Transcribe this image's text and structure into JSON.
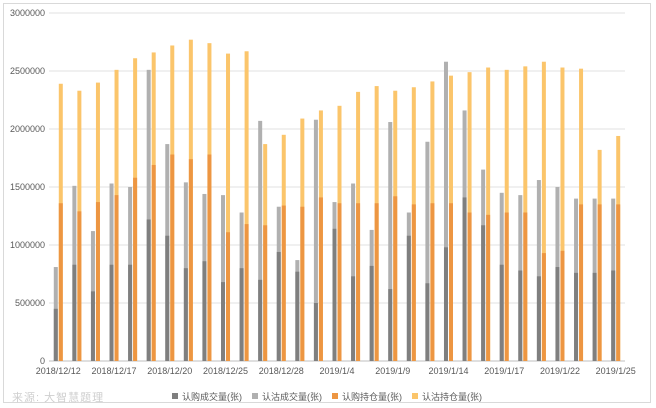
{
  "watermark": "来源: 大智慧题理",
  "chart_data": {
    "type": "bar",
    "title": "",
    "xlabel": "",
    "ylabel": "",
    "ylim": [
      0,
      3000000
    ],
    "yticks": [
      0,
      500000,
      1000000,
      1500000,
      2000000,
      2500000,
      3000000
    ],
    "ytick_labels": [
      "0",
      "500000",
      "1000000",
      "1500000",
      "2000000",
      "2500000",
      "3000000"
    ],
    "grid": true,
    "legend_position": "bottom",
    "categories": [
      "2018/12/12",
      "2018/12/13",
      "2018/12/14",
      "2018/12/17",
      "2018/12/18",
      "2018/12/19",
      "2018/12/20",
      "2018/12/21",
      "2018/12/24",
      "2018/12/25",
      "2018/12/26",
      "2018/12/27",
      "2018/12/28",
      "2019/1/2",
      "2019/1/3",
      "2019/1/4",
      "2019/1/7",
      "2019/1/8",
      "2019/1/9",
      "2019/1/10",
      "2019/1/11",
      "2019/1/14",
      "2019/1/15",
      "2019/1/16",
      "2019/1/17",
      "2019/1/18",
      "2019/1/21",
      "2019/1/22",
      "2019/1/23",
      "2019/1/24",
      "2019/1/25"
    ],
    "xtick_labels": [
      "2018/12/12",
      "2018/12/17",
      "2018/12/20",
      "2018/12/25",
      "2018/12/28",
      "2019/1/4",
      "2019/1/9",
      "2019/1/14",
      "2019/1/17",
      "2019/1/22",
      "2019/1/25"
    ],
    "xtick_indices": [
      0,
      3,
      6,
      9,
      12,
      15,
      18,
      21,
      24,
      27,
      30
    ],
    "series": [
      {
        "name": "认购成交量(张)",
        "color": "#7f7f7f",
        "group": 0,
        "values": [
          450000,
          830000,
          600000,
          830000,
          830000,
          1220000,
          1080000,
          800000,
          860000,
          680000,
          800000,
          700000,
          940000,
          770000,
          500000,
          1140000,
          730000,
          820000,
          620000,
          1080000,
          670000,
          980000,
          1410000,
          1170000,
          830000,
          780000,
          730000,
          810000,
          760000,
          760000,
          780000
        ]
      },
      {
        "name": "认沽成交量(张)",
        "color": "#b0b0b0",
        "group": 0,
        "values": [
          810000,
          1510000,
          1120000,
          1530000,
          1500000,
          2510000,
          1870000,
          1540000,
          1440000,
          1430000,
          1280000,
          2070000,
          1330000,
          870000,
          2080000,
          1370000,
          1530000,
          1130000,
          2060000,
          1280000,
          1890000,
          2580000,
          2160000,
          1650000,
          1450000,
          1430000,
          1560000,
          1500000,
          1400000,
          1400000,
          1400000
        ]
      },
      {
        "name": "认购持仓量(张)",
        "color": "#ed9642",
        "group": 1,
        "values": [
          1360000,
          1290000,
          1370000,
          1430000,
          1580000,
          1690000,
          1780000,
          1740000,
          1780000,
          1110000,
          1180000,
          1170000,
          1340000,
          1330000,
          1410000,
          1360000,
          1360000,
          1360000,
          1420000,
          1350000,
          1360000,
          1360000,
          1280000,
          1260000,
          1280000,
          1280000,
          930000,
          950000,
          1350000,
          1350000,
          1350000
        ]
      },
      {
        "name": "认沽持仓量(张)",
        "color": "#fbc56b",
        "group": 1,
        "values": [
          2390000,
          2330000,
          2400000,
          2510000,
          2610000,
          2660000,
          2720000,
          2770000,
          2740000,
          2650000,
          2670000,
          1870000,
          1950000,
          2090000,
          2160000,
          2200000,
          2320000,
          2370000,
          2330000,
          2360000,
          2410000,
          2460000,
          2490000,
          2530000,
          2510000,
          2540000,
          2580000,
          2530000,
          2520000,
          1820000,
          1940000
        ]
      }
    ]
  }
}
